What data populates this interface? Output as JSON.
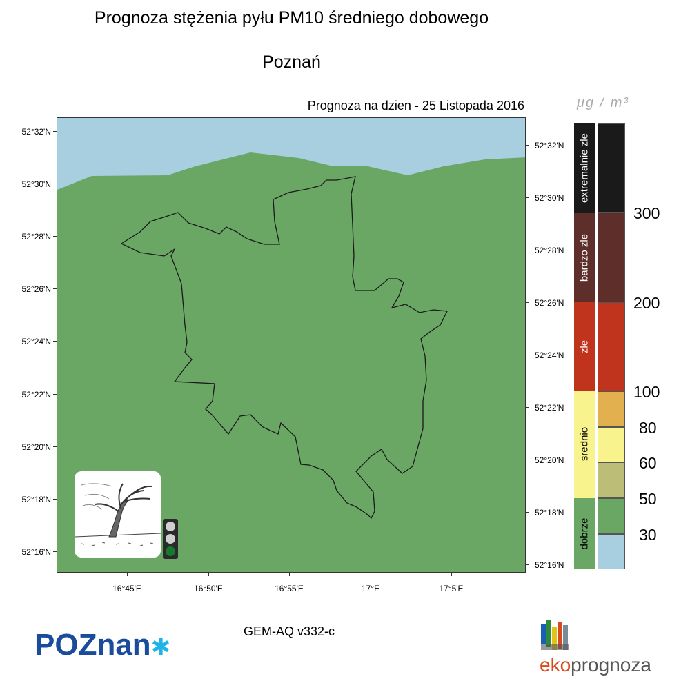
{
  "header": {
    "title": "Prognoza stężenia pyłu PM10 średniego dobowego",
    "city": "Poznań",
    "forecast_prefix": "Prognoza na dzien -",
    "forecast_date": "25 Listopada 2016",
    "unit": "μg / m³"
  },
  "map": {
    "lat_labels": [
      "52°32'N",
      "52°30'N",
      "52°28'N",
      "52°26'N",
      "52°24'N",
      "52°22'N",
      "52°20'N",
      "52°18'N",
      "52°16'N"
    ],
    "lat_labels_right": [
      "52°32'N",
      "52°30'N",
      "52°28'N",
      "52°26'N",
      "52°24'N",
      "52°22'N",
      "52°20'N",
      "52°18'N",
      "52°16'N"
    ],
    "lon_labels": [
      "16°45'E",
      "16°50'E",
      "16°55'E",
      "17°E",
      "17°5'E"
    ],
    "colors": {
      "land": "#6aa765",
      "water": "#a8cfe0",
      "boundary": "#1a1a1a"
    },
    "traffic_light": {
      "lit": "green"
    }
  },
  "legend": {
    "categories": [
      {
        "label": "extremalnie zle",
        "color": "#1a1a1a"
      },
      {
        "label": "bardzo zle",
        "color": "#5e2f2a"
      },
      {
        "label": "zle",
        "color": "#c0331c"
      },
      {
        "label": "srednio",
        "color": "#f9f38d"
      },
      {
        "label": "dobrze",
        "color": "#6aa765"
      }
    ],
    "scale_colors": [
      "#1a1a1a",
      "#5e2f2a",
      "#c0331c",
      "#e2b04e",
      "#f9f38d",
      "#bcbd77",
      "#6aa765",
      "#a8cfe0"
    ],
    "scale_values": [
      "300",
      "200",
      "100",
      "80",
      "60",
      "50",
      "30"
    ]
  },
  "footer": {
    "model": "GEM-AQ v332-c",
    "logo_left": "POZnan",
    "logo_right_a": "eko",
    "logo_right_b": "prognoza"
  }
}
